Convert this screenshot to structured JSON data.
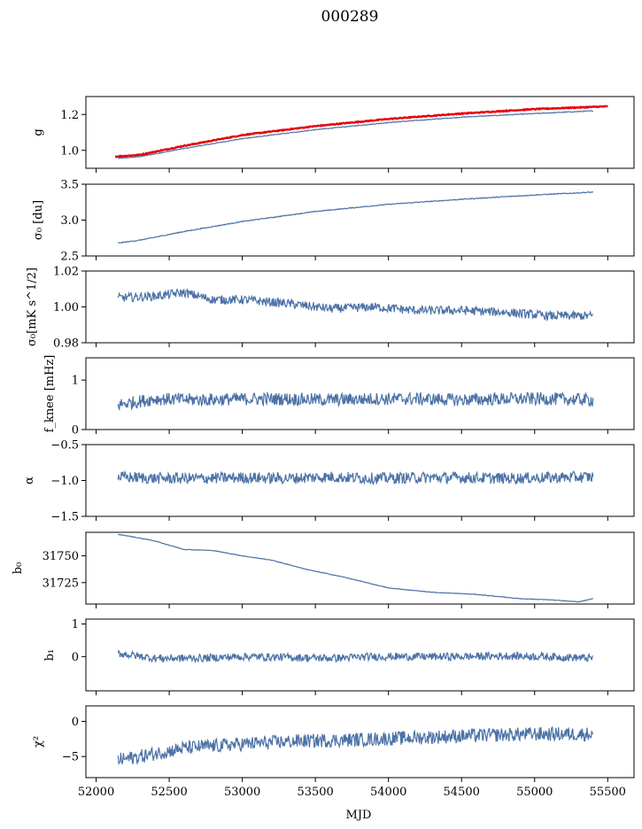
{
  "figure": {
    "title": "000289",
    "xlabel": "MJD"
  },
  "chart_data": [
    {
      "type": "line",
      "ylabel": "g",
      "ylim": [
        0.9,
        1.3
      ],
      "yticks": [
        1.0,
        1.2
      ],
      "ytick_labels": [
        "1.0",
        "1.2"
      ],
      "xlim": [
        51930,
        55680
      ],
      "series": [
        {
          "color": "#4c72a6",
          "x": [
            52150,
            52300,
            52600,
            53000,
            53500,
            54000,
            54500,
            55000,
            55400
          ],
          "y": [
            0.955,
            0.965,
            1.01,
            1.065,
            1.115,
            1.155,
            1.185,
            1.205,
            1.22
          ]
        },
        {
          "color": "#e8000b",
          "x": [
            52130,
            52300,
            52600,
            53000,
            53500,
            54000,
            54500,
            55000,
            55500
          ],
          "y": [
            0.965,
            0.975,
            1.025,
            1.085,
            1.135,
            1.175,
            1.205,
            1.23,
            1.245
          ]
        }
      ]
    },
    {
      "type": "line",
      "ylabel": "σ₀ [du]",
      "ylim": [
        2.5,
        3.5
      ],
      "yticks": [
        2.5,
        3.0,
        3.5
      ],
      "ytick_labels": [
        "2.5",
        "3.0",
        "3.5"
      ],
      "xlim": [
        51930,
        55680
      ],
      "series": [
        {
          "color": "#4c72a6",
          "x": [
            52150,
            52300,
            52600,
            53000,
            53500,
            54000,
            54500,
            55000,
            55400
          ],
          "y": [
            2.68,
            2.72,
            2.84,
            2.98,
            3.12,
            3.22,
            3.29,
            3.35,
            3.39
          ]
        }
      ]
    },
    {
      "type": "line",
      "ylabel": "σ₀[mK s^1/2]",
      "ylim": [
        0.98,
        1.02
      ],
      "yticks": [
        0.98,
        1.0,
        1.02
      ],
      "ytick_labels": [
        "0.98",
        "1.00",
        "1.02"
      ],
      "xlim": [
        51930,
        55680
      ],
      "series": [
        {
          "color": "#4c72a6",
          "x": [
            52150,
            52400,
            52600,
            52800,
            53000,
            53300,
            53600,
            53900,
            54200,
            54500,
            54800,
            55100,
            55400
          ],
          "y": [
            1.005,
            1.006,
            1.008,
            1.004,
            1.004,
            1.002,
            0.999,
            1.0,
            0.998,
            0.998,
            0.997,
            0.995,
            0.995
          ]
        }
      ]
    },
    {
      "type": "line",
      "ylabel": "f_knee [mHz]",
      "ylim": [
        0,
        1.45
      ],
      "yticks": [
        0,
        1
      ],
      "ytick_labels": [
        "0",
        "1"
      ],
      "xlim": [
        51930,
        55680
      ],
      "series": [
        {
          "color": "#4c72a6",
          "x": [
            52150,
            52400,
            52700,
            53000,
            53300,
            53600,
            53900,
            54200,
            54500,
            54800,
            55100,
            55400
          ],
          "y": [
            0.5,
            0.62,
            0.6,
            0.62,
            0.62,
            0.6,
            0.62,
            0.62,
            0.6,
            0.62,
            0.62,
            0.6
          ]
        }
      ]
    },
    {
      "type": "line",
      "ylabel": "α",
      "ylim": [
        -1.5,
        -0.5
      ],
      "yticks": [
        -1.5,
        -1.0,
        -0.5
      ],
      "ytick_labels": [
        "−1.5",
        "−1.0",
        "−0.5"
      ],
      "xlim": [
        51930,
        55680
      ],
      "series": [
        {
          "color": "#4c72a6",
          "x": [
            52150,
            52400,
            52700,
            53000,
            53300,
            53600,
            53900,
            54200,
            54500,
            54800,
            55100,
            55400
          ],
          "y": [
            -0.95,
            -0.97,
            -0.97,
            -0.96,
            -0.97,
            -0.95,
            -0.97,
            -0.96,
            -0.96,
            -0.97,
            -0.96,
            -0.95
          ]
        }
      ]
    },
    {
      "type": "line",
      "ylabel": "b₀",
      "ylim": [
        31705,
        31772
      ],
      "yticks": [
        31725,
        31750
      ],
      "ytick_labels": [
        "31725",
        "31750"
      ],
      "xlim": [
        51930,
        55680
      ],
      "series": [
        {
          "color": "#4c72a6",
          "x": [
            52150,
            52200,
            52400,
            52600,
            52800,
            53000,
            53200,
            53450,
            53700,
            54000,
            54300,
            54600,
            54900,
            55100,
            55200,
            55300,
            55400
          ],
          "y": [
            31770,
            31769,
            31764,
            31756,
            31755,
            31750,
            31746,
            31737,
            31730,
            31720,
            31716,
            31714,
            31710,
            31709,
            31708,
            31707,
            31710
          ]
        }
      ]
    },
    {
      "type": "line",
      "ylabel": "b₁",
      "ylim": [
        -1.05,
        1.15
      ],
      "yticks": [
        0,
        1
      ],
      "ytick_labels": [
        "0",
        "1"
      ],
      "xlim": [
        51930,
        55680
      ],
      "series": [
        {
          "color": "#4c72a6",
          "x": [
            52150,
            52400,
            52700,
            53000,
            53300,
            53600,
            53900,
            54200,
            54500,
            54800,
            55100,
            55400
          ],
          "y": [
            0.1,
            -0.05,
            -0.05,
            0.0,
            -0.02,
            -0.05,
            0.0,
            0.0,
            0.0,
            0.02,
            0.0,
            -0.05
          ]
        }
      ]
    },
    {
      "type": "line",
      "ylabel": "χ²",
      "ylim": [
        -8,
        2.2
      ],
      "yticks": [
        -5,
        0
      ],
      "ytick_labels": [
        "−5",
        "0"
      ],
      "xlim": [
        51930,
        55680
      ],
      "xticks": [
        52000,
        52500,
        53000,
        53500,
        54000,
        54500,
        55000,
        55500
      ],
      "xtick_labels": [
        "52000",
        "52500",
        "53000",
        "53500",
        "54000",
        "54500",
        "55000",
        "55500"
      ],
      "series": [
        {
          "color": "#4c72a6",
          "x": [
            52150,
            52300,
            52600,
            53000,
            53400,
            53800,
            54200,
            54600,
            55000,
            55400
          ],
          "y": [
            -5.5,
            -5.0,
            -3.8,
            -3.2,
            -2.8,
            -2.6,
            -2.3,
            -2.0,
            -1.8,
            -1.8
          ]
        }
      ]
    }
  ]
}
